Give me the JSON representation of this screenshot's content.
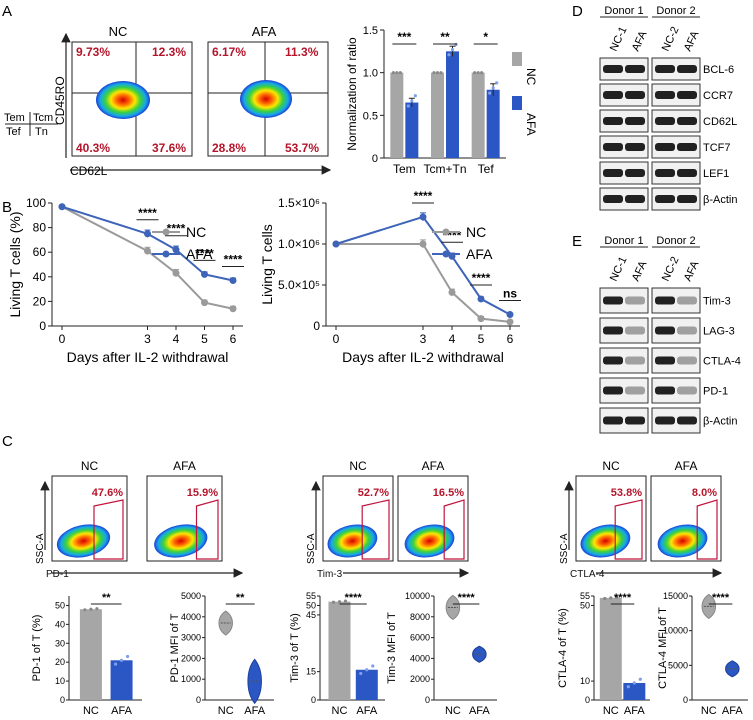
{
  "colors": {
    "nc": "#a6a6a6",
    "afa": "#2b57c4",
    "nc_line": "#9a9a9a",
    "afa_line": "#3d64b8",
    "pct": "#b5152b",
    "gate": "#c0143c"
  },
  "panel_labels": {
    "a": "A",
    "b": "B",
    "c": "C",
    "d": "D",
    "e": "E"
  },
  "panel_a": {
    "quadrant_key": {
      "tl": "Tem",
      "tr": "Tcm",
      "bl": "Tef",
      "br": "Tn"
    },
    "x_axis": "CD62L",
    "y_axis": "CD45RO",
    "plots": [
      {
        "title": "NC",
        "q_tl": "9.73%",
        "q_tr": "12.3%",
        "q_bl": "40.3%",
        "q_br": "37.6%"
      },
      {
        "title": "AFA",
        "q_tl": "6.17%",
        "q_tr": "11.3%",
        "q_bl": "28.8%",
        "q_br": "53.7%"
      }
    ]
  },
  "chart_data": [
    {
      "id": "a_bar",
      "type": "bar",
      "ylabel": "Normalization of ratio",
      "ylim": [
        0,
        1.5
      ],
      "yticks": [
        "0",
        "0.5",
        "1.0",
        "1.5"
      ],
      "categories": [
        "Tem",
        "Tcm+Tn",
        "Tef"
      ],
      "series": [
        {
          "name": "NC",
          "values": [
            1.0,
            1.0,
            1.0
          ]
        },
        {
          "name": "AFA",
          "values": [
            0.65,
            1.25,
            0.8
          ]
        }
      ],
      "errors": [
        0.05,
        0.06,
        0.07
      ],
      "significance": [
        "***",
        "**",
        "*"
      ],
      "legend": [
        "NC",
        "AFA"
      ]
    },
    {
      "id": "b_left",
      "type": "line",
      "xlabel": "Days after IL-2 withdrawal",
      "ylabel": "Living T cells (%)",
      "x": [
        0,
        3,
        4,
        5,
        6
      ],
      "xticks": [
        "0",
        "3",
        "4",
        "5",
        "6"
      ],
      "ylim": [
        0,
        100
      ],
      "yticks": [
        "0",
        "20",
        "40",
        "60",
        "80",
        "100"
      ],
      "series": [
        {
          "name": "NC",
          "values": [
            97,
            61,
            43,
            19,
            14
          ]
        },
        {
          "name": "AFA",
          "values": [
            97,
            75,
            62,
            42,
            37
          ]
        }
      ],
      "errors": [
        0,
        3,
        3,
        2,
        2
      ],
      "significance": [
        "****",
        "****",
        "****",
        "****"
      ],
      "legend": [
        "NC",
        "AFA"
      ]
    },
    {
      "id": "b_right",
      "type": "line",
      "xlabel": "Days after IL-2 withdrawal",
      "ylabel": "Living T cells",
      "x": [
        0,
        3,
        4,
        5,
        6
      ],
      "xticks": [
        "0",
        "3",
        "4",
        "5",
        "6"
      ],
      "ylim": [
        0,
        1500000
      ],
      "yticks": [
        "0",
        "5.0×10⁵",
        "1.0×10⁶",
        "1.5×10⁶"
      ],
      "series": [
        {
          "name": "NC",
          "values": [
            1000000,
            1000000,
            410000,
            90000,
            50000
          ]
        },
        {
          "name": "AFA",
          "values": [
            1000000,
            1330000,
            850000,
            330000,
            140000
          ]
        }
      ],
      "errors": [
        0,
        50000,
        40000,
        25000,
        15000
      ],
      "significance": [
        "****",
        "****",
        "****",
        "ns"
      ],
      "legend": [
        "NC",
        "AFA"
      ]
    },
    {
      "id": "c_pd1_pct",
      "type": "bar",
      "ylabel": "PD-1 of T (%)",
      "categories": [
        "NC",
        "AFA"
      ],
      "values": [
        48,
        21
      ],
      "ylim": [
        0,
        55
      ],
      "significance": "**"
    },
    {
      "id": "c_pd1_mfi",
      "type": "violin",
      "ylabel": "PD-1 MFI of T",
      "categories": [
        "NC",
        "AFA"
      ],
      "values": [
        3700,
        900
      ],
      "significance": "**"
    },
    {
      "id": "c_tim3_pct",
      "type": "bar",
      "ylabel": "Tim-3 of T (%)",
      "categories": [
        "NC",
        "AFA"
      ],
      "values": [
        52,
        16
      ],
      "yticks": [
        "0",
        "15",
        "45",
        "50",
        "55"
      ],
      "significance": "****"
    },
    {
      "id": "c_tim3_mfi",
      "type": "violin",
      "ylabel": "Tim-3 MFI of T",
      "categories": [
        "NC",
        "AFA"
      ],
      "values": [
        8900,
        4400
      ],
      "ylim": [
        0,
        10000
      ],
      "yticks": [
        "0",
        "2000",
        "4000",
        "6000",
        "8000",
        "10000"
      ],
      "significance": "****"
    },
    {
      "id": "c_ctla4_pct",
      "type": "bar",
      "ylabel": "CTLA-4 of T (%)",
      "categories": [
        "NC",
        "AFA"
      ],
      "values": [
        54,
        9
      ],
      "yticks": [
        "0",
        "10",
        "50",
        "55"
      ],
      "significance": "****"
    },
    {
      "id": "c_ctla4_mfi",
      "type": "violin",
      "ylabel": "CTLA-4 MFI of T",
      "categories": [
        "NC",
        "AFA"
      ],
      "values": [
        13500,
        4500
      ],
      "ylim": [
        0,
        15000
      ],
      "yticks": [
        "0",
        "5000",
        "10000",
        "15000"
      ],
      "significance": "****"
    }
  ],
  "panel_c_flow": [
    {
      "marker": "PD-1",
      "y_axis": "SSC-A",
      "nc_title": "NC",
      "afa_title": "AFA",
      "nc_pct": "47.6%",
      "afa_pct": "15.9%"
    },
    {
      "marker": "Tim-3",
      "y_axis": "SSC-A",
      "nc_title": "NC",
      "afa_title": "AFA",
      "nc_pct": "52.7%",
      "afa_pct": "16.5%"
    },
    {
      "marker": "CTLA-4",
      "y_axis": "SSC-A",
      "nc_title": "NC",
      "afa_title": "AFA",
      "nc_pct": "53.8%",
      "afa_pct": "8.0%"
    }
  ],
  "panel_d": {
    "donors": [
      "Donor 1",
      "Donor 2"
    ],
    "lanes": [
      "NC-1",
      "AFA",
      "NC-2",
      "AFA"
    ],
    "bands": [
      "BCL-6",
      "CCR7",
      "CD62L",
      "TCF7",
      "LEF1",
      "β-Actin"
    ]
  },
  "panel_e": {
    "donors": [
      "Donor 1",
      "Donor 2"
    ],
    "lanes": [
      "NC-1",
      "AFA",
      "NC-2",
      "AFA"
    ],
    "bands": [
      "Tim-3",
      "LAG-3",
      "CTLA-4",
      "PD-1",
      "β-Actin"
    ]
  }
}
